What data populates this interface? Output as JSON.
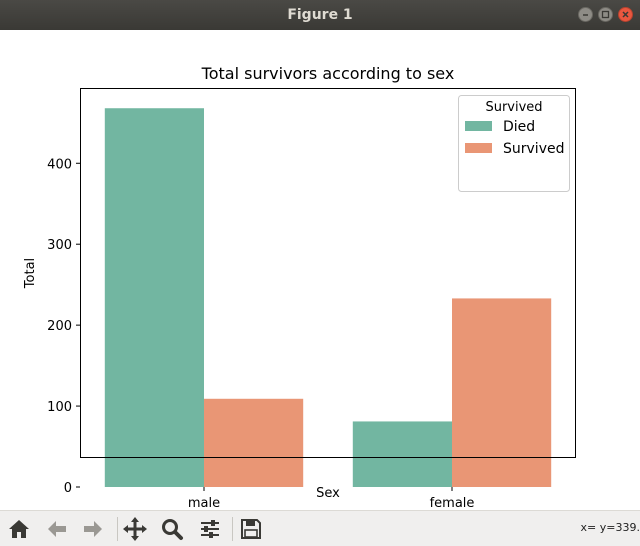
{
  "window": {
    "title": "Figure 1"
  },
  "toolbar": {
    "buttons": [
      "home-icon",
      "back-icon",
      "forward-icon",
      "pan-icon",
      "zoom-icon",
      "configure-subplots-icon",
      "save-icon"
    ],
    "coordinates": "x= y=339."
  },
  "colors": {
    "died": "#72b6a1",
    "survived": "#e99675"
  },
  "chart_data": {
    "type": "bar",
    "title": "Total survivors according to sex",
    "xlabel": "Sex",
    "ylabel": "Total",
    "categories": [
      "male",
      "female"
    ],
    "series": [
      {
        "name": "Died",
        "values": [
          468,
          81
        ]
      },
      {
        "name": "Survived",
        "values": [
          109,
          233
        ]
      }
    ],
    "ylim": [
      0,
      493
    ],
    "yticks": [
      0,
      100,
      200,
      300,
      400
    ],
    "legend": {
      "title": "Survived",
      "position": "top-right"
    },
    "grid": false
  }
}
